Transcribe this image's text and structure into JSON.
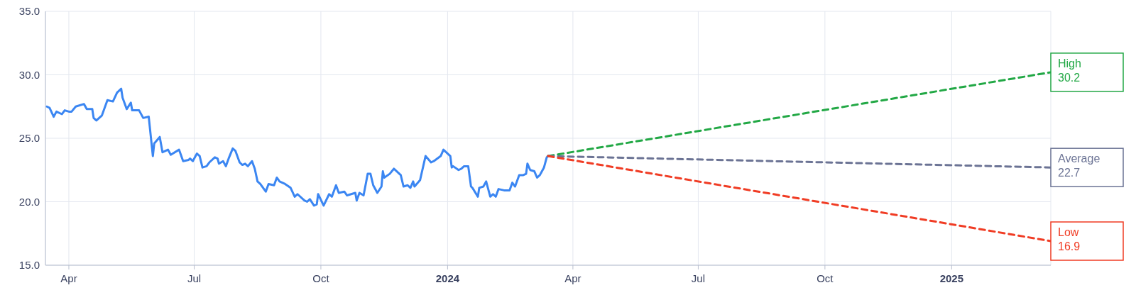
{
  "chart_data": {
    "type": "line",
    "xlim": [
      "2023-03-15",
      "2025-03-14"
    ],
    "ylim": [
      15,
      35
    ],
    "xticks": [
      {
        "value": "2023-04-01",
        "label": "Apr"
      },
      {
        "value": "2023-07-01",
        "label": "Jul"
      },
      {
        "value": "2023-10-01",
        "label": "Oct"
      },
      {
        "value": "2024-01-01",
        "label": "2024"
      },
      {
        "value": "2024-04-01",
        "label": "Apr"
      },
      {
        "value": "2024-07-01",
        "label": "Jul"
      },
      {
        "value": "2024-10-01",
        "label": "Oct"
      },
      {
        "value": "2025-01-01",
        "label": "2025"
      }
    ],
    "yticks": [
      {
        "value": 15,
        "label": "15.0"
      },
      {
        "value": 20,
        "label": "20.0"
      },
      {
        "value": 25,
        "label": "25.0"
      },
      {
        "value": 30,
        "label": "30.0"
      },
      {
        "value": 35,
        "label": "35.0"
      }
    ],
    "grid": true,
    "legend": false,
    "marker": "none",
    "series": [
      {
        "color": "#3b86f2",
        "line_style": "solid",
        "x": [
          "2023-03-16",
          "2023-03-18",
          "2023-03-21",
          "2023-03-23",
          "2023-03-27",
          "2023-03-29",
          "2023-04-01",
          "2023-04-03",
          "2023-04-06",
          "2023-04-12",
          "2023-04-14",
          "2023-04-18",
          "2023-04-19",
          "2023-04-21",
          "2023-04-25",
          "2023-04-29",
          "2023-05-03",
          "2023-05-06",
          "2023-05-09",
          "2023-05-10",
          "2023-05-13",
          "2023-05-16",
          "2023-05-17",
          "2023-05-22",
          "2023-05-25",
          "2023-05-29",
          "2023-06-01",
          "2023-06-02",
          "2023-06-06",
          "2023-06-08",
          "2023-06-12",
          "2023-06-14",
          "2023-06-20",
          "2023-06-23",
          "2023-06-27",
          "2023-06-28",
          "2023-06-30",
          "2023-07-03",
          "2023-07-05",
          "2023-07-07",
          "2023-07-10",
          "2023-07-12",
          "2023-07-16",
          "2023-07-18",
          "2023-07-19",
          "2023-07-22",
          "2023-07-24",
          "2023-07-26",
          "2023-07-29",
          "2023-07-31",
          "2023-08-03",
          "2023-08-05",
          "2023-08-07",
          "2023-08-09",
          "2023-08-12",
          "2023-08-14",
          "2023-08-16",
          "2023-08-18",
          "2023-08-22",
          "2023-08-24",
          "2023-08-28",
          "2023-08-30",
          "2023-09-01",
          "2023-09-05",
          "2023-09-09",
          "2023-09-12",
          "2023-09-14",
          "2023-09-19",
          "2023-09-21",
          "2023-09-23",
          "2023-09-26",
          "2023-09-28",
          "2023-09-29",
          "2023-10-03",
          "2023-10-07",
          "2023-10-09",
          "2023-10-12",
          "2023-10-14",
          "2023-10-18",
          "2023-10-20",
          "2023-10-26",
          "2023-10-27",
          "2023-10-29",
          "2023-11-01",
          "2023-11-04",
          "2023-11-06",
          "2023-11-08",
          "2023-11-11",
          "2023-11-14",
          "2023-11-15",
          "2023-11-16",
          "2023-11-20",
          "2023-11-23",
          "2023-11-28",
          "2023-11-30",
          "2023-12-03",
          "2023-12-05",
          "2023-12-07",
          "2023-12-08",
          "2023-12-12",
          "2023-12-16",
          "2023-12-20",
          "2023-12-22",
          "2023-12-27",
          "2023-12-29",
          "2024-01-03",
          "2024-01-04",
          "2024-01-05",
          "2024-01-09",
          "2024-01-11",
          "2024-01-13",
          "2024-01-16",
          "2024-01-18",
          "2024-01-19",
          "2024-01-23",
          "2024-01-24",
          "2024-01-27",
          "2024-01-29",
          "2024-02-01",
          "2024-02-03",
          "2024-02-05",
          "2024-02-07",
          "2024-02-11",
          "2024-02-15",
          "2024-02-17",
          "2024-02-19",
          "2024-02-22",
          "2024-02-25",
          "2024-02-27",
          "2024-02-28",
          "2024-03-01",
          "2024-03-04",
          "2024-03-06",
          "2024-03-08",
          "2024-03-11",
          "2024-03-13",
          "2024-03-14"
        ],
        "values": [
          27.5,
          27.4,
          26.7,
          27.1,
          26.9,
          27.2,
          27.1,
          27.1,
          27.5,
          27.7,
          27.3,
          27.3,
          26.6,
          26.4,
          26.8,
          28.0,
          27.9,
          28.6,
          28.9,
          28.2,
          27.3,
          27.8,
          27.2,
          27.2,
          26.6,
          26.7,
          23.6,
          24.6,
          25.1,
          23.9,
          24.1,
          23.7,
          24.1,
          23.2,
          23.3,
          23.4,
          23.2,
          23.8,
          23.6,
          22.7,
          22.8,
          23.1,
          23.5,
          23.4,
          23.0,
          23.2,
          22.8,
          23.4,
          24.2,
          24.0,
          23.1,
          22.9,
          23.0,
          22.8,
          23.2,
          22.6,
          21.6,
          21.4,
          20.8,
          21.4,
          21.3,
          21.9,
          21.6,
          21.4,
          21.1,
          20.4,
          20.6,
          20.1,
          20.0,
          20.2,
          19.7,
          19.8,
          20.6,
          19.7,
          20.6,
          20.4,
          21.3,
          20.7,
          20.8,
          20.5,
          20.7,
          20.1,
          20.7,
          20.5,
          22.2,
          22.2,
          21.3,
          20.7,
          21.2,
          22.4,
          21.9,
          22.2,
          22.6,
          22.1,
          21.2,
          21.3,
          21.1,
          21.6,
          21.2,
          21.7,
          23.6,
          23.1,
          23.2,
          23.6,
          24.1,
          23.6,
          22.7,
          22.8,
          22.5,
          22.6,
          22.8,
          22.8,
          21.2,
          21.1,
          20.4,
          21.1,
          21.2,
          21.6,
          20.4,
          20.6,
          20.4,
          21.0,
          20.9,
          20.9,
          21.5,
          21.2,
          22.1,
          22.1,
          22.2,
          23.0,
          22.5,
          22.4,
          21.9,
          22.1,
          22.7,
          23.5,
          23.6
        ]
      },
      {
        "name": "High",
        "color": "#22a845",
        "line_style": "dashed",
        "x": [
          "2024-03-14",
          "2025-03-14"
        ],
        "values": [
          23.6,
          30.2
        ],
        "value_labels": [
          null,
          "30.2"
        ]
      },
      {
        "name": "Average",
        "color": "#6b7394",
        "line_style": "dashed",
        "x": [
          "2024-03-14",
          "2025-03-14"
        ],
        "values": [
          23.6,
          22.7
        ],
        "value_labels": [
          null,
          "22.7"
        ]
      },
      {
        "name": "Low",
        "color": "#f03c24",
        "line_style": "dashed",
        "x": [
          "2024-03-14",
          "2025-03-14"
        ],
        "values": [
          23.6,
          16.9
        ],
        "value_labels": [
          null,
          "16.9"
        ]
      }
    ]
  }
}
